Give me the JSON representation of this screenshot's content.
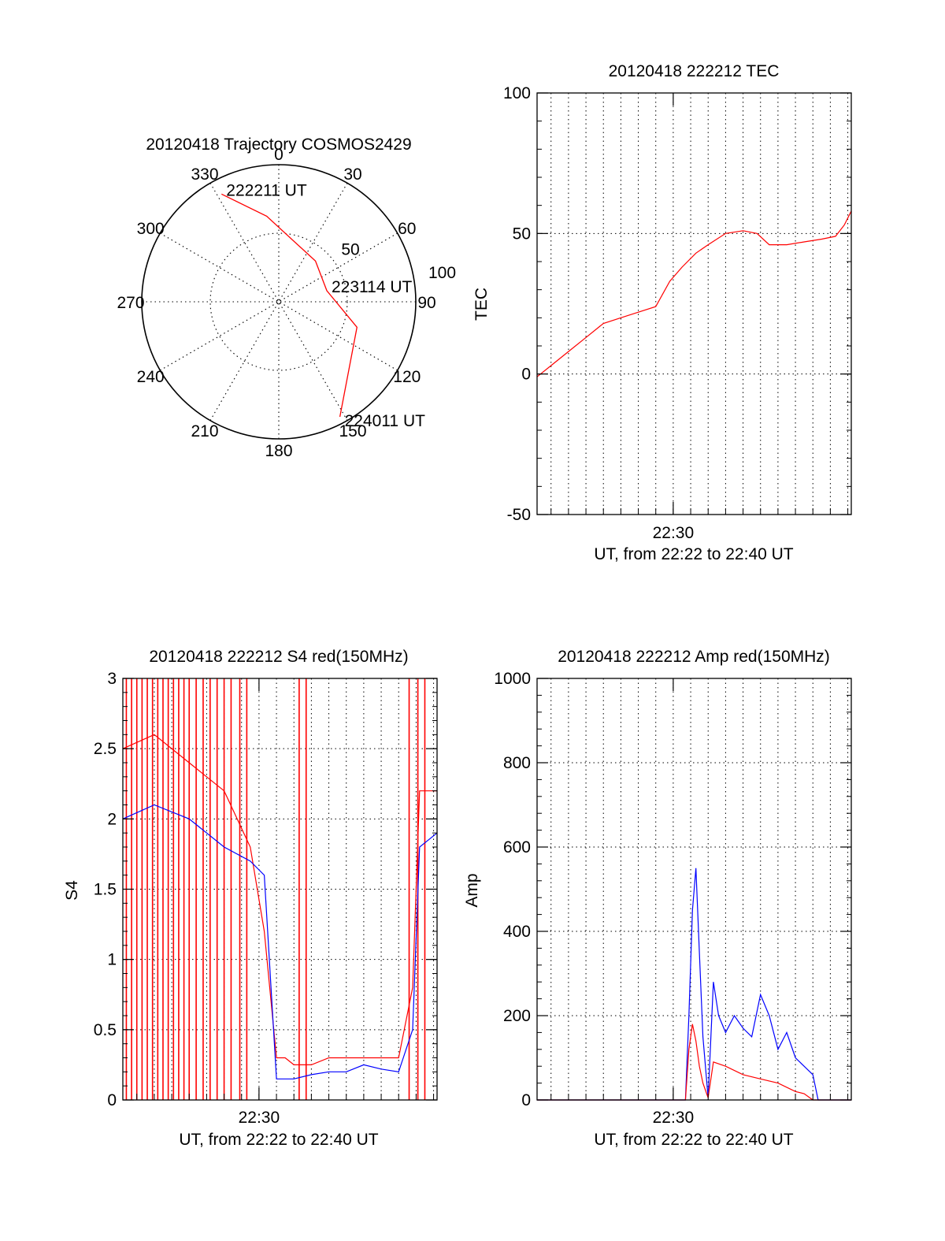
{
  "colors": {
    "series_a": "#ff0000",
    "series_b": "#0000ff",
    "axis": "#000000",
    "grid": "#000000"
  },
  "chart_data": [
    {
      "type": "polar",
      "title": "20120418 Trajectory COSMOS2429",
      "azimuth_labels": [
        "0",
        "30",
        "60",
        "90",
        "120",
        "150",
        "180",
        "210",
        "240",
        "270",
        "300",
        "330"
      ],
      "radial_labels": [
        "50",
        "100"
      ],
      "radial_max": 100,
      "grid": true,
      "series": [
        {
          "color": "#ff0000",
          "points": [
            {
              "azimuth": 332,
              "elevation_ring": 89
            },
            {
              "azimuth": 352,
              "elevation_ring": 63
            },
            {
              "azimuth": 42,
              "elevation_ring": 40
            },
            {
              "azimuth": 77,
              "elevation_ring": 36
            },
            {
              "azimuth": 108,
              "elevation_ring": 60
            },
            {
              "azimuth": 152,
              "elevation_ring": 95
            }
          ]
        }
      ],
      "annotations": [
        {
          "text": "222211 UT",
          "azimuth": 332,
          "elevation_ring": 89
        },
        {
          "text": "223114 UT",
          "azimuth": 77,
          "elevation_ring": 36
        },
        {
          "text": "224011 UT",
          "azimuth": 152,
          "elevation_ring": 95
        }
      ]
    },
    {
      "type": "line",
      "title": "20120418 222212 TEC",
      "ylabel": "TEC",
      "xlabel": "UT, from 22:22 to 22:40 UT",
      "xtick_label": "22:30",
      "xtick_minute": 30,
      "xlim_minutes": [
        22.2,
        40.2
      ],
      "ylim": [
        -50,
        100
      ],
      "yticks": [
        -50,
        0,
        50,
        100
      ],
      "grid": true,
      "series": [
        {
          "color": "#ff0000",
          "x": [
            22.2,
            23,
            24,
            25,
            26,
            27,
            28,
            29,
            29.8,
            30.5,
            31.3,
            32,
            33,
            34,
            34.8,
            35.5,
            36.5,
            37.5,
            38.5,
            39.3,
            39.8,
            40.2
          ],
          "y": [
            -1,
            3,
            8,
            13,
            18,
            20,
            22,
            24,
            33,
            38,
            43,
            46,
            50,
            51,
            50,
            46,
            46,
            47,
            48,
            49,
            53,
            58
          ]
        }
      ]
    },
    {
      "type": "line",
      "title": "20120418 222212 S4 red(150MHz)",
      "ylabel": "S4",
      "xlabel": "UT, from 22:22 to 22:40 UT",
      "xtick_label": "22:30",
      "xtick_minute": 30,
      "xlim_minutes": [
        22.2,
        40.2
      ],
      "ylim": [
        0,
        3
      ],
      "yticks": [
        "0",
        "0.5",
        "1",
        "1.5",
        "2",
        "2.5",
        "3"
      ],
      "ytick_values": [
        0,
        0.5,
        1,
        1.5,
        2,
        2.5,
        3
      ],
      "grid": true,
      "series": [
        {
          "color": "#ff0000",
          "x": [
            22.2,
            24,
            26,
            28,
            29.5,
            30.3,
            31,
            31.5,
            32,
            33,
            34,
            35,
            36,
            37,
            38,
            38.8,
            39.2,
            40.2
          ],
          "y": [
            2.5,
            2.6,
            2.4,
            2.2,
            1.8,
            1.2,
            0.3,
            0.3,
            0.25,
            0.25,
            0.3,
            0.3,
            0.3,
            0.3,
            0.3,
            0.8,
            2.2,
            2.2
          ]
        },
        {
          "color": "#0000ff",
          "x": [
            22.2,
            24,
            26,
            28,
            29.5,
            30.3,
            31,
            31.5,
            32,
            33,
            34,
            35,
            36,
            37,
            38,
            38.8,
            39.2,
            40.2
          ],
          "y": [
            2.0,
            2.1,
            2.0,
            1.8,
            1.7,
            1.6,
            0.15,
            0.15,
            0.15,
            0.18,
            0.2,
            0.2,
            0.25,
            0.22,
            0.2,
            0.5,
            1.8,
            1.9
          ]
        }
      ],
      "red_spikes_minutes": [
        22.4,
        22.7,
        23.0,
        23.3,
        23.6,
        23.9,
        24.2,
        24.5,
        24.8,
        25.1,
        25.4,
        25.7,
        26.0,
        26.4,
        26.8,
        27.2,
        27.6,
        28.0,
        28.4,
        28.9,
        29.3,
        32.3,
        32.7,
        38.6,
        39.1,
        39.5
      ]
    },
    {
      "type": "line",
      "title": "20120418 222212 Amp red(150MHz)",
      "ylabel": "Amp",
      "xlabel": "UT, from 22:22 to 22:40 UT",
      "xtick_label": "22:30",
      "xtick_minute": 30,
      "xlim_minutes": [
        22.2,
        40.2
      ],
      "ylim": [
        0,
        1000
      ],
      "yticks": [
        0,
        200,
        400,
        600,
        800,
        1000
      ],
      "grid": true,
      "series": [
        {
          "color": "#0000ff",
          "x": [
            22.2,
            30.7,
            30.9,
            31.1,
            31.3,
            31.5,
            31.7,
            32.0,
            32.3,
            32.6,
            33.0,
            33.5,
            34.0,
            34.5,
            35.0,
            35.5,
            36.0,
            36.5,
            37.0,
            37.5,
            38.0,
            38.3,
            40.2
          ],
          "y": [
            0,
            0,
            200,
            450,
            550,
            350,
            150,
            5,
            280,
            200,
            160,
            200,
            170,
            150,
            250,
            200,
            120,
            160,
            100,
            80,
            60,
            0,
            0
          ]
        },
        {
          "color": "#ff0000",
          "x": [
            22.2,
            30.7,
            30.9,
            31.1,
            31.3,
            31.5,
            31.7,
            32.0,
            32.3,
            33.0,
            34.0,
            35.0,
            36.0,
            37.0,
            37.5,
            38.0,
            40.2
          ],
          "y": [
            0,
            0,
            120,
            180,
            140,
            80,
            40,
            5,
            90,
            80,
            60,
            50,
            40,
            20,
            15,
            0,
            0
          ]
        }
      ]
    }
  ]
}
